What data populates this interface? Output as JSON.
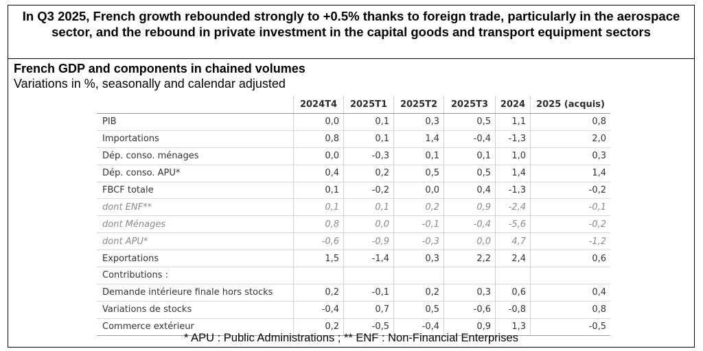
{
  "headline": "In Q3 2025, French growth rebounded strongly to +0.5% thanks to foreign trade, particularly in the aerospace sector, and the rebound in private investment in the capital goods and transport equipment sectors",
  "subtitle": "French GDP and components in chained volumes",
  "caption": "Variations in %, seasonally and calendar adjusted",
  "table": {
    "columns": [
      "",
      "2024T4",
      "2025T1",
      "2025T2",
      "2025T3",
      "2024",
      "2025 (acquis)"
    ],
    "rows": [
      {
        "label": "PIB",
        "values": [
          "0,0",
          "0,1",
          "0,3",
          "0,5",
          "1,1",
          "0,8"
        ]
      },
      {
        "label": "Importations",
        "values": [
          "0,8",
          "0,1",
          "1,4",
          "-0,4",
          "-1,3",
          "2,0"
        ]
      },
      {
        "label": "Dép. conso. ménages",
        "values": [
          "0,0",
          "-0,3",
          "0,1",
          "0,1",
          "1,0",
          "0,3"
        ]
      },
      {
        "label": "Dép. conso. APU*",
        "values": [
          "0,4",
          "0,2",
          "0,5",
          "0,5",
          "1,4",
          "1,4"
        ]
      },
      {
        "label": "FBCF totale",
        "values": [
          "0,1",
          "-0,2",
          "0,0",
          "0,4",
          "-1,3",
          "-0,2"
        ]
      },
      {
        "label": "dont ENF**",
        "values": [
          "0,1",
          "0,1",
          "0,2",
          "0,9",
          "-2,4",
          "-0,1"
        ]
      },
      {
        "label": "dont Ménages",
        "values": [
          "0,8",
          "0,0",
          "-0,1",
          "-0,4",
          "-5,6",
          "-0,2"
        ]
      },
      {
        "label": "dont APU*",
        "values": [
          "-0,6",
          "-0,9",
          "-0,3",
          "0,0",
          "4,7",
          "-1,2"
        ]
      },
      {
        "label": "Exportations",
        "values": [
          "1,5",
          "-1,4",
          "0,3",
          "2,2",
          "2,4",
          "0,6"
        ]
      },
      {
        "label": "Contributions :",
        "values": [
          "",
          "",
          "",
          "",
          "",
          ""
        ]
      },
      {
        "label": "Demande intérieure finale hors stocks",
        "values": [
          "0,2",
          "-0,1",
          "0,2",
          "0,3",
          "0,6",
          "0,4"
        ]
      },
      {
        "label": "Variations de stocks",
        "values": [
          "-0,4",
          "0,7",
          "0,5",
          "-0,6",
          "-0,8",
          "0,8"
        ]
      },
      {
        "label": "Commerce extérieur",
        "values": [
          "0,2",
          "-0,5",
          "-0,4",
          "0,9",
          "1,3",
          "-0,5"
        ]
      }
    ]
  },
  "footnote": "* APU : Public Administrations ; ** ENF : Non-Financial Enterprises"
}
